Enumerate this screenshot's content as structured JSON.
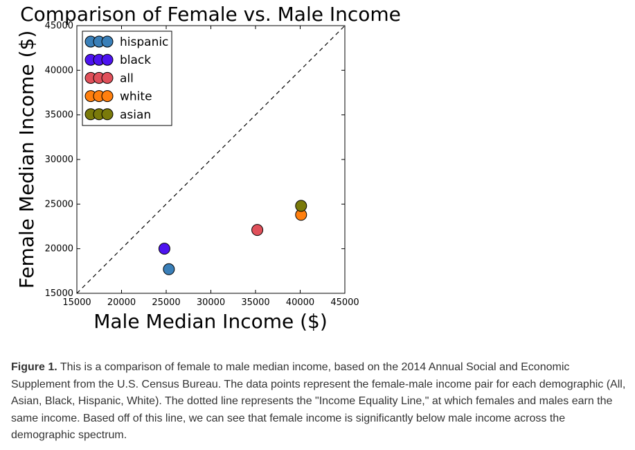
{
  "chart_data": {
    "type": "scatter",
    "title": "Comparison of Female vs. Male Income",
    "xlabel": "Male Median Income ($)",
    "ylabel": "Female Median Income ($)",
    "xlim": [
      15000,
      45000
    ],
    "ylim": [
      15000,
      45000
    ],
    "xticks": [
      "15000",
      "20000",
      "25000",
      "30000",
      "35000",
      "40000",
      "45000"
    ],
    "yticks": [
      "15000",
      "20000",
      "25000",
      "30000",
      "35000",
      "40000",
      "45000"
    ],
    "grid": false,
    "legend_position": "top-left",
    "reference_line": {
      "type": "dashed",
      "from": [
        15000,
        15000
      ],
      "to": [
        45000,
        45000
      ]
    },
    "series": [
      {
        "name": "hispanic",
        "color": "#3a7fb8",
        "x": 25300,
        "y": 17700
      },
      {
        "name": "black",
        "color": "#4d13f0",
        "x": 24800,
        "y": 20000
      },
      {
        "name": "all",
        "color": "#e0505a",
        "x": 35200,
        "y": 22100
      },
      {
        "name": "white",
        "color": "#ff7f0e",
        "x": 40100,
        "y": 23800
      },
      {
        "name": "asian",
        "color": "#7a7a0a",
        "x": 40100,
        "y": 24800
      }
    ]
  },
  "caption": {
    "label": "Figure 1.",
    "text": " This is a comparison of female to male median income, based on the 2014 Annual Social and Economic Supplement from the U.S. Census Bureau. The data points represent the female-male income pair for each demographic (All, Asian, Black, Hispanic, White). The dotted line represents the \"Income Equality Line,\" at which females and males earn the same income. Based off of this line, we can see that female income is significantly below male income across the demographic spectrum."
  }
}
